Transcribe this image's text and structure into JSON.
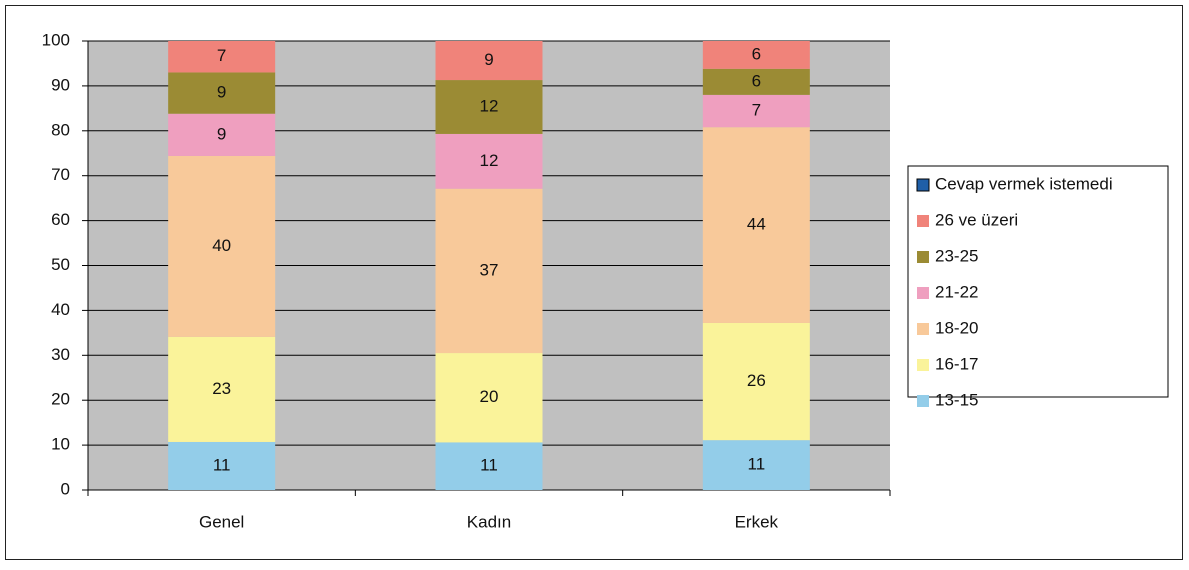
{
  "chart_data": {
    "type": "stacked_bar",
    "categories": [
      "Genel",
      "Kadın",
      "Erkek"
    ],
    "series": [
      {
        "name": "13-15",
        "color": "#93cde9",
        "values": [
          10.7,
          10.6,
          11.1
        ],
        "value_labels": [
          "11",
          "11",
          "11"
        ]
      },
      {
        "name": "16-17",
        "color": "#faf39a",
        "values": [
          23.4,
          19.9,
          26.1
        ],
        "value_labels": [
          "23",
          "20",
          "26"
        ]
      },
      {
        "name": "18-20",
        "color": "#f8c99a",
        "values": [
          40.3,
          36.6,
          43.6
        ],
        "value_labels": [
          "40",
          "37",
          "44"
        ]
      },
      {
        "name": "21-22",
        "color": "#ef9fbf",
        "values": [
          9.4,
          12.2,
          7.2
        ],
        "value_labels": [
          "9",
          "12",
          "7"
        ]
      },
      {
        "name": "23-25",
        "color": "#9b8b34",
        "values": [
          9.2,
          12.0,
          5.8
        ],
        "value_labels": [
          "9",
          "12",
          "6"
        ]
      },
      {
        "name": "26 ve üzeri",
        "color": "#f0837a",
        "values": [
          7.0,
          8.7,
          6.2
        ],
        "value_labels": [
          "7",
          "9",
          "6"
        ]
      },
      {
        "name": "Cevap vermek istemedi",
        "color": "#1f5fa8",
        "values": [
          0,
          0,
          0
        ]
      }
    ],
    "ylim": [
      0,
      100
    ],
    "yticks": [
      0,
      10,
      20,
      30,
      40,
      50,
      60,
      70,
      80,
      90,
      100
    ],
    "grid": true,
    "legend": "right",
    "plot_background": "#c0c0c0"
  }
}
